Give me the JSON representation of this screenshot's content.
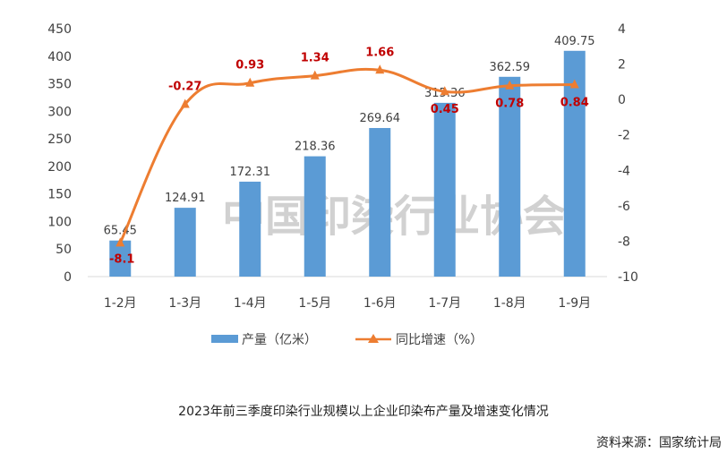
{
  "chart_data": {
    "type": "bar+line",
    "categories": [
      "1-2月",
      "1-3月",
      "1-4月",
      "1-5月",
      "1-6月",
      "1-7月",
      "1-8月",
      "1-9月"
    ],
    "series": [
      {
        "name": "产量（亿米）",
        "type": "bar",
        "axis": "left",
        "values": [
          65.45,
          124.91,
          172.31,
          218.36,
          269.64,
          315.36,
          362.59,
          409.75
        ],
        "labels": [
          "65.45",
          "124.91",
          "172.31",
          "218.36",
          "269.64",
          "315.36",
          "362.59",
          "409.75"
        ]
      },
      {
        "name": "同比增速（%）",
        "type": "line",
        "axis": "right",
        "values": [
          -8.1,
          -0.27,
          0.93,
          1.34,
          1.66,
          0.45,
          0.78,
          0.84
        ],
        "labels": [
          "-8.1",
          "-0.27",
          "0.93",
          "1.34",
          "1.66",
          "0.45",
          "0.78",
          "0.84"
        ]
      }
    ],
    "ylim_left": [
      0,
      450
    ],
    "yticks_left": [
      "0",
      "50",
      "100",
      "150",
      "200",
      "250",
      "300",
      "350",
      "400",
      "450"
    ],
    "ylim_right": [
      -10,
      4
    ],
    "yticks_right": [
      "-10",
      "-8",
      "-6",
      "-4",
      "-2",
      "0",
      "2",
      "4"
    ],
    "grid": false,
    "legend_position": "bottom",
    "bar_color": "#5b9bd5",
    "line_color": "#ed7d31",
    "label_color": "#c00000"
  },
  "legend": {
    "bar": "产量（亿米）",
    "line": "同比增速（%）"
  },
  "watermark": "中国印染行业协会",
  "caption": "2023年前三季度印染行业规模以上企业印染布产量及增速变化情况",
  "source": "资料来源：国家统计局"
}
